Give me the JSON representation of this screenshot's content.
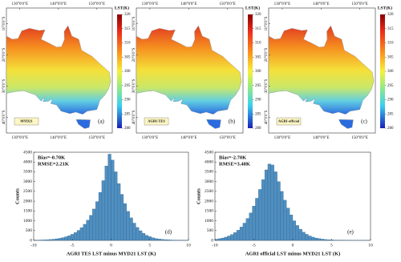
{
  "chart_data": [
    {
      "type": "map",
      "label": "MYD21",
      "panel_label": "(a)",
      "colorbar_title": "LST(K)",
      "clim": [
        280,
        320
      ],
      "cticks": [
        280,
        285,
        290,
        295,
        300,
        305,
        310,
        315,
        320
      ],
      "xlim": [
        126.5,
        154
      ],
      "ylim": [
        -5,
        -45
      ],
      "xticks": [
        {
          "value": 130,
          "label": "130°0'0\"E"
        },
        {
          "value": 140,
          "label": "140°0'0\"E"
        },
        {
          "value": 150,
          "label": "150°0'0\"E"
        }
      ],
      "yticks": [
        {
          "value": -10,
          "label": "10°0'0\"S"
        },
        {
          "value": -20,
          "label": "20°0'0\"S"
        },
        {
          "value": -30,
          "label": "30°0'0\"S"
        },
        {
          "value": -40,
          "label": "40°0'0\"S"
        }
      ]
    },
    {
      "type": "map",
      "label": "AGRI-TES",
      "panel_label": "(b)",
      "colorbar_title": "LST(K)",
      "clim": [
        280,
        320
      ],
      "cticks": [
        280,
        285,
        290,
        295,
        300,
        305,
        310,
        315,
        320
      ],
      "xlim": [
        126.5,
        154
      ],
      "ylim": [
        -5,
        -45
      ],
      "xticks": [
        {
          "value": 130,
          "label": "130°0'0\"E"
        },
        {
          "value": 140,
          "label": "140°0'0\"E"
        },
        {
          "value": 150,
          "label": "150°0'0\"E"
        }
      ],
      "yticks": [
        {
          "value": -10,
          "label": "10°0'0\"S"
        },
        {
          "value": -20,
          "label": "20°0'0\"S"
        },
        {
          "value": -30,
          "label": "30°0'0\"S"
        },
        {
          "value": -40,
          "label": "40°0'0\"S"
        }
      ]
    },
    {
      "type": "map",
      "label": "AGRI-official",
      "panel_label": "(c)",
      "colorbar_title": "LST(K)",
      "clim": [
        280,
        320
      ],
      "cticks": [
        280,
        285,
        290,
        295,
        300,
        305,
        310,
        315,
        320
      ],
      "xlim": [
        126.5,
        154
      ],
      "ylim": [
        -5,
        -45
      ],
      "xticks": [
        {
          "value": 130,
          "label": "130°0'0\"E"
        },
        {
          "value": 140,
          "label": "140°0'0\"E"
        },
        {
          "value": 150,
          "label": "150°0'0\"E"
        }
      ],
      "yticks": [
        {
          "value": -10,
          "label": "10°0'0\"S"
        },
        {
          "value": -20,
          "label": "20°0'0\"S"
        },
        {
          "value": -30,
          "label": "30°0'0\"S"
        },
        {
          "value": -40,
          "label": "40°0'0\"S"
        }
      ]
    },
    {
      "type": "histogram",
      "panel_label": "(d)",
      "annotations": [
        "Bias=-0.70K",
        "RMSE=2.21K"
      ],
      "xlabel": "AGRI TES LST minus MYD21 LST (K)",
      "ylabel": "Counts",
      "color": "#4f8fc0",
      "xlim": [
        -10,
        10
      ],
      "xticks": [
        -10,
        -5,
        0,
        5,
        10
      ],
      "ylim": [
        0,
        4500
      ],
      "yticks": [
        0,
        500,
        1000,
        1500,
        2000,
        2500,
        3000,
        3500,
        4000,
        4500
      ],
      "bins": [
        -10,
        -9.6,
        -9.2,
        -8.8,
        -8.4,
        -8,
        -7.6,
        -7.2,
        -6.8,
        -6.4,
        -6,
        -5.6,
        -5.2,
        -4.8,
        -4.4,
        -4,
        -3.6,
        -3.2,
        -2.8,
        -2.4,
        -2,
        -1.6,
        -1.2,
        -0.8,
        -0.4,
        0,
        0.4,
        0.8,
        1.2,
        1.6,
        2,
        2.4,
        2.8,
        3.2,
        3.6,
        4,
        4.4,
        4.8,
        5.2,
        5.6,
        6,
        6.4,
        6.8,
        7.2,
        7.6,
        8,
        8.4,
        8.8,
        9.2,
        9.6,
        10
      ],
      "values": [
        10,
        15,
        20,
        25,
        35,
        45,
        60,
        80,
        105,
        140,
        185,
        240,
        310,
        400,
        510,
        650,
        820,
        1030,
        1280,
        1600,
        1980,
        2450,
        3050,
        3800,
        4400,
        4100,
        3500,
        2900,
        2350,
        1880,
        1480,
        1150,
        880,
        660,
        490,
        360,
        260,
        190,
        135,
        95,
        70,
        50,
        38,
        28,
        20,
        15,
        11,
        8,
        6,
        4
      ]
    },
    {
      "type": "histogram",
      "panel_label": "(e)",
      "annotations": [
        "Bias=-2.70K",
        "RMSE=3.48K"
      ],
      "xlabel": "AGRI official LST minus MYD21 LST (K)",
      "ylabel": "Counts",
      "color": "#4f8fc0",
      "xlim": [
        -10,
        10
      ],
      "xticks": [
        -10,
        -5,
        0,
        5,
        10
      ],
      "ylim": [
        0,
        4500
      ],
      "yticks": [
        0,
        500,
        1000,
        1500,
        2000,
        2500,
        3000,
        3500,
        4000,
        4500
      ],
      "bins": [
        -10,
        -9.6,
        -9.2,
        -8.8,
        -8.4,
        -8,
        -7.6,
        -7.2,
        -6.8,
        -6.4,
        -6,
        -5.6,
        -5.2,
        -4.8,
        -4.4,
        -4,
        -3.6,
        -3.2,
        -2.8,
        -2.4,
        -2,
        -1.6,
        -1.2,
        -0.8,
        -0.4,
        0,
        0.4,
        0.8,
        1.2,
        1.6,
        2,
        2.4,
        2.8,
        3.2,
        3.6,
        4,
        4.4,
        4.8,
        5.2,
        5.6,
        6,
        6.4,
        6.8,
        7.2,
        7.6,
        8,
        8.4,
        8.8,
        9.2,
        9.6,
        10
      ],
      "values": [
        60,
        85,
        120,
        165,
        225,
        300,
        400,
        520,
        680,
        880,
        1120,
        1400,
        1750,
        2150,
        2600,
        3100,
        3600,
        3900,
        3850,
        3500,
        3000,
        2500,
        2050,
        1650,
        1300,
        1000,
        760,
        570,
        420,
        310,
        225,
        165,
        120,
        88,
        64,
        46,
        33,
        24,
        17,
        12,
        9,
        7,
        5,
        4,
        3,
        2,
        2,
        1,
        1,
        1
      ]
    }
  ]
}
